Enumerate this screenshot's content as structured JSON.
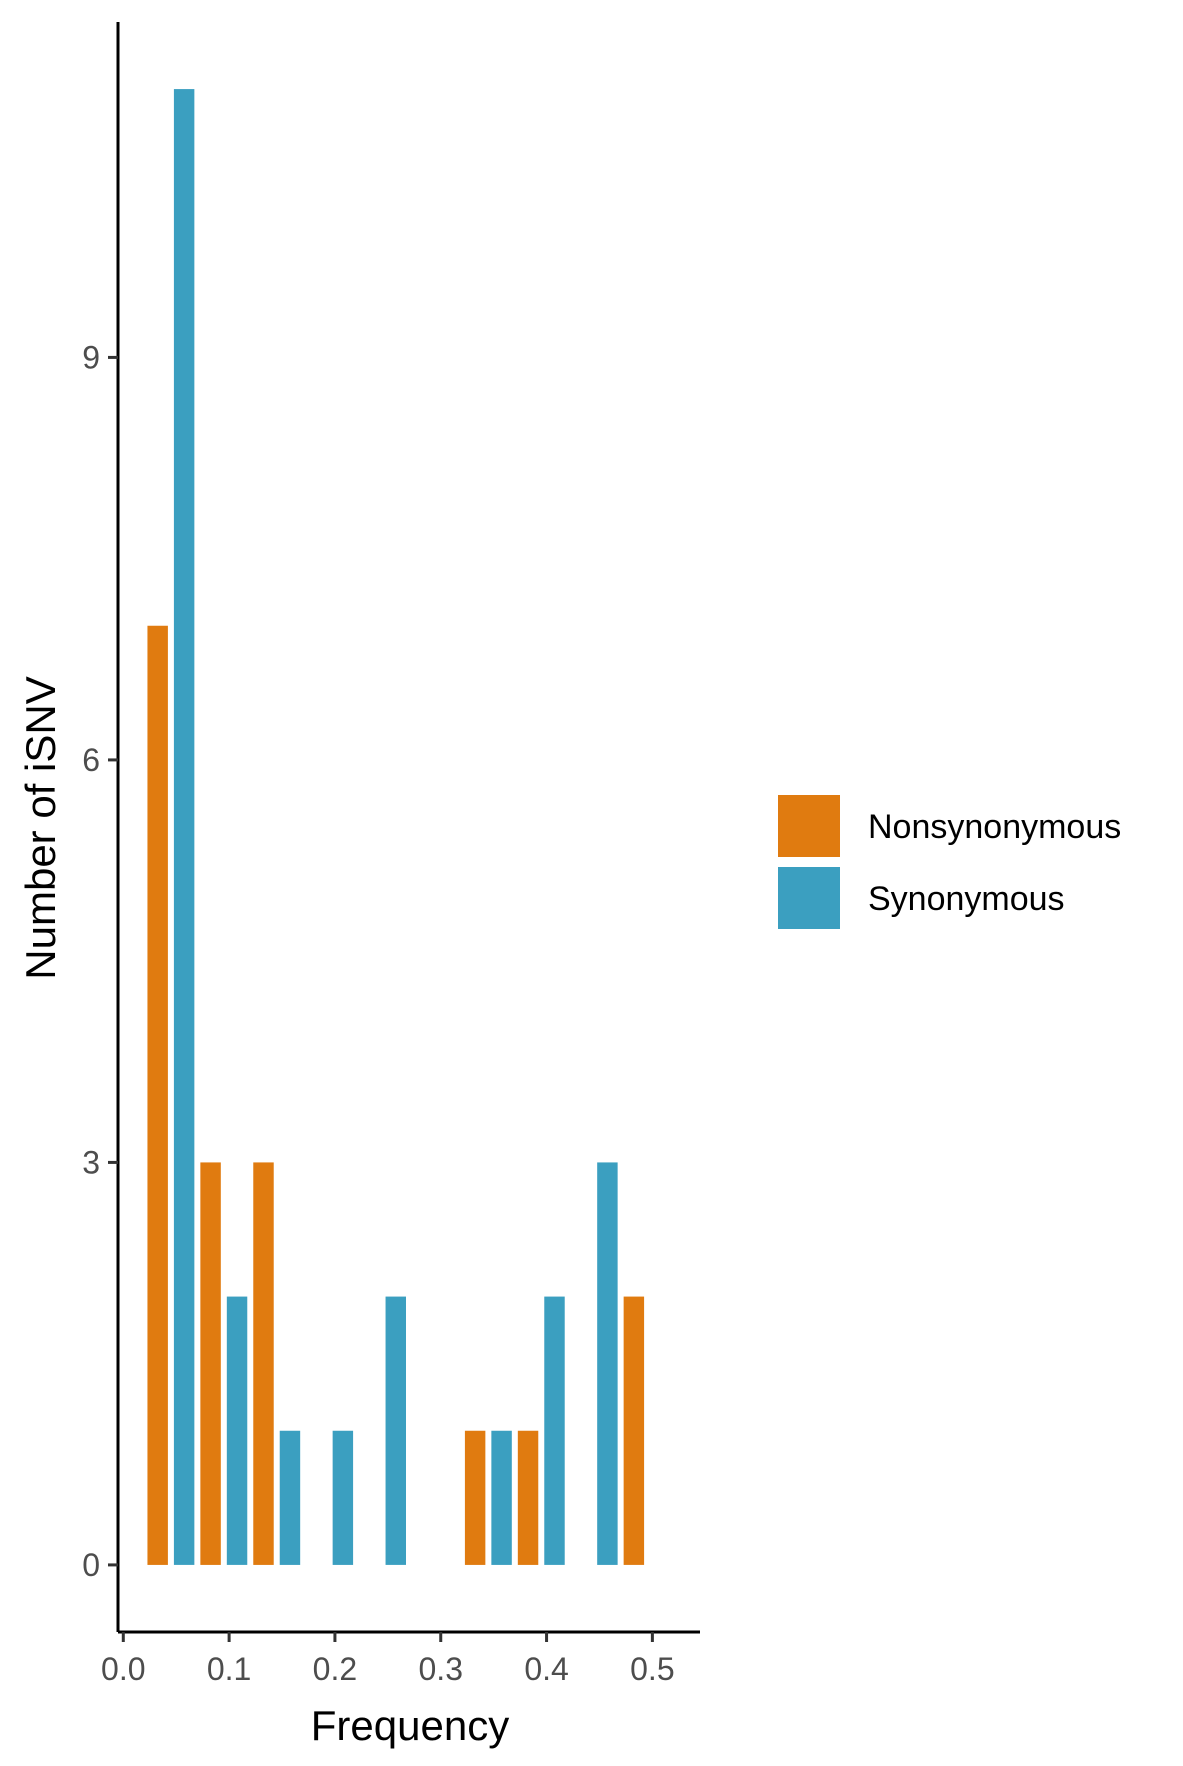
{
  "chart_data": {
    "type": "bar",
    "xlabel": "Frequency",
    "ylabel": "Number of iSNV",
    "xlim": [
      -0.005,
      0.545
    ],
    "ylim": [
      -0.5,
      11.5
    ],
    "x_ticks": [
      0.0,
      0.1,
      0.2,
      0.3,
      0.4,
      0.5
    ],
    "x_tick_labels": [
      "0.0",
      "0.1",
      "0.2",
      "0.3",
      "0.4",
      "0.5"
    ],
    "y_ticks": [
      0,
      3,
      6,
      9
    ],
    "y_tick_labels": [
      "0",
      "3",
      "6",
      "9"
    ],
    "bin_width": 0.025,
    "grid": false,
    "legend_position": "right",
    "series": [
      {
        "name": "Nonsynonymous",
        "color": "#e07b10",
        "x": [
          0.0325,
          0.0825,
          0.1325,
          0.3325,
          0.3825,
          0.4825
        ],
        "values": [
          7,
          3,
          3,
          1,
          1,
          2
        ]
      },
      {
        "name": "Synonymous",
        "color": "#3b9fc0",
        "x": [
          0.0575,
          0.1075,
          0.1575,
          0.2075,
          0.2575,
          0.3575,
          0.4075,
          0.4575
        ],
        "values": [
          11,
          2,
          1,
          1,
          2,
          1,
          2,
          3
        ]
      }
    ]
  }
}
